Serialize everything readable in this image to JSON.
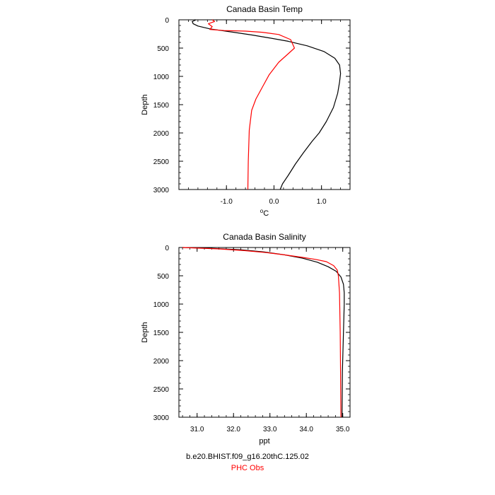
{
  "chart_data": [
    {
      "type": "line",
      "title": "Canada Basin Temp",
      "xlabel": "oC",
      "xlabel_base": "C",
      "xlabel_superscript": "o",
      "ylabel": "Depth",
      "xlim": [
        -2.0,
        1.6
      ],
      "ylim": [
        3000,
        0
      ],
      "y_reversed": true,
      "xticks": [
        -1.0,
        0.0,
        1.0
      ],
      "xtick_labels": [
        "-1.0",
        "0.0",
        "1.0"
      ],
      "yticks": [
        0,
        500,
        1000,
        1500,
        2000,
        2500,
        3000
      ],
      "ytick_labels": [
        "0",
        "500",
        "1000",
        "1500",
        "2000",
        "2500",
        "3000"
      ],
      "grid": false,
      "series": [
        {
          "color": "#000000",
          "x": [
            -1.64,
            -1.72,
            -1.7,
            -1.6,
            -1.35,
            -0.85,
            -0.45,
            -0.1,
            0.3,
            0.7,
            1.05,
            1.28,
            1.38,
            1.4,
            1.38,
            1.34,
            1.25,
            1.1,
            0.95,
            0.8,
            0.62,
            0.45,
            0.3,
            0.18,
            0.13
          ],
          "y": [
            0,
            30,
            70,
            110,
            160,
            220,
            270,
            320,
            380,
            460,
            560,
            680,
            800,
            950,
            1100,
            1300,
            1550,
            1800,
            2000,
            2150,
            2350,
            2550,
            2750,
            2900,
            3000
          ]
        },
        {
          "color": "#ff0000",
          "x": [
            -1.3,
            -1.25,
            -1.38,
            -1.3,
            -1.35,
            -1.05,
            -0.6,
            -0.25,
            0.1,
            0.35,
            0.43,
            0.3,
            0.1,
            -0.1,
            -0.25,
            -0.38,
            -0.47,
            -0.52,
            -0.54,
            -0.55
          ],
          "y": [
            0,
            30,
            70,
            120,
            170,
            190,
            200,
            220,
            260,
            350,
            500,
            600,
            750,
            970,
            1200,
            1400,
            1600,
            1950,
            2500,
            3000
          ]
        }
      ]
    },
    {
      "type": "line",
      "title": "Canada Basin Salinity",
      "xlabel": "ppt",
      "ylabel": "Depth",
      "xlim": [
        30.5,
        35.2
      ],
      "ylim": [
        3000,
        0
      ],
      "y_reversed": true,
      "xticks": [
        31.0,
        32.0,
        33.0,
        34.0,
        35.0
      ],
      "xtick_labels": [
        "31.0",
        "32.0",
        "33.0",
        "34.0",
        "35.0"
      ],
      "yticks": [
        0,
        500,
        1000,
        1500,
        2000,
        2500,
        3000
      ],
      "ytick_labels": [
        "0",
        "500",
        "1000",
        "1500",
        "2000",
        "2500",
        "3000"
      ],
      "grid": false,
      "series": [
        {
          "color": "#000000",
          "x": [
            30.6,
            31.4,
            32.2,
            32.85,
            33.4,
            33.9,
            34.3,
            34.6,
            34.82,
            34.95,
            35.02,
            35.04,
            35.04,
            35.02,
            34.99,
            34.98
          ],
          "y": [
            0,
            15,
            40,
            80,
            130,
            190,
            260,
            340,
            420,
            520,
            650,
            800,
            1000,
            1500,
            2200,
            3000
          ]
        },
        {
          "color": "#ff0000",
          "x": [
            30.6,
            31.6,
            32.3,
            32.9,
            33.4,
            33.85,
            34.25,
            34.55,
            34.75,
            34.85,
            34.88,
            34.91,
            34.93,
            34.94,
            34.95
          ],
          "y": [
            0,
            25,
            55,
            90,
            130,
            170,
            210,
            250,
            320,
            400,
            500,
            800,
            1500,
            2200,
            3000
          ]
        }
      ]
    }
  ],
  "footer": {
    "case_name": "b.e20.BHIST.f09_g16.20thC.125.02",
    "obs_name": "PHC Obs"
  },
  "colors": {
    "model": "#000000",
    "obs": "#ff0000"
  }
}
